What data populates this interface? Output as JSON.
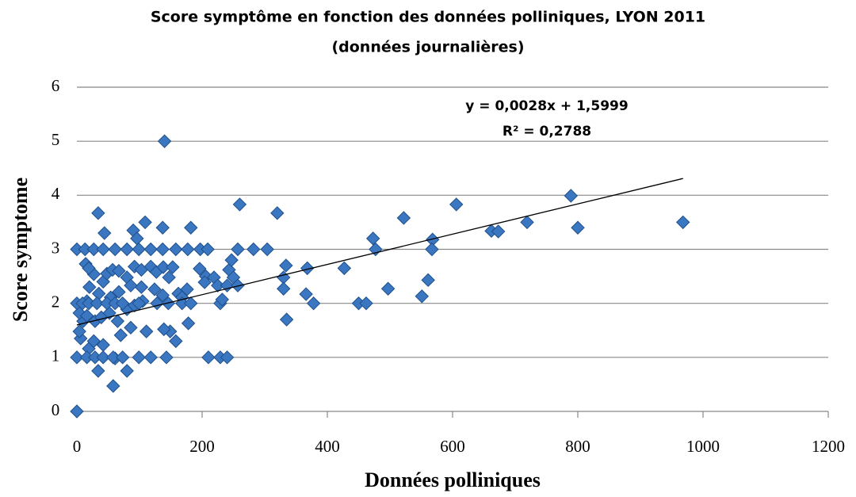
{
  "chart_data": {
    "type": "scatter",
    "title": [
      "Score symptôme en fonction des données polliniques, LYON 2011",
      "(données journalières)"
    ],
    "x_label": "Données polliniques",
    "y_label": "Score symptome",
    "xlim": [
      0,
      1200
    ],
    "xticks": [
      0,
      200,
      400,
      600,
      800,
      1000,
      1200
    ],
    "ylim": [
      0,
      6
    ],
    "yticks": [
      0,
      1,
      2,
      3,
      4,
      5,
      6
    ],
    "grid": true,
    "color": "#3b77c0",
    "x": [
      0,
      140,
      260,
      320,
      34,
      109,
      137,
      182,
      44,
      90,
      96,
      0,
      13,
      27,
      42,
      61,
      80,
      99,
      118,
      137,
      158,
      177,
      197,
      209,
      257,
      282,
      304,
      473,
      477,
      522,
      606,
      568,
      567,
      662,
      673,
      719,
      789,
      800,
      968,
      334,
      330,
      330,
      335,
      368,
      366,
      378,
      427,
      450,
      462,
      497,
      551,
      561,
      206,
      219,
      225,
      229,
      232,
      240,
      243,
      247,
      250,
      257,
      196,
      210,
      229,
      240,
      204,
      20,
      27,
      14,
      19,
      42,
      48,
      57,
      67,
      80,
      92,
      103,
      118,
      127,
      138,
      147,
      153,
      162,
      168,
      176,
      178,
      158,
      149,
      139,
      111,
      86,
      70,
      61,
      58,
      80,
      34,
      19,
      27,
      42,
      6,
      4,
      10,
      4,
      16,
      29,
      39,
      52,
      65,
      80,
      92,
      105,
      124,
      137,
      103,
      86,
      67,
      54,
      35,
      16,
      0,
      9,
      19,
      32,
      48,
      61,
      73,
      99,
      128,
      146,
      168,
      182,
      0,
      16,
      29,
      42,
      58,
      73,
      99,
      118,
      143
    ],
    "values": [
      0,
      5.0,
      3.83,
      3.67,
      3.67,
      3.5,
      3.4,
      3.4,
      3.3,
      3.35,
      3.2,
      3,
      3,
      3,
      3,
      3,
      3,
      3,
      3,
      3,
      3,
      3,
      3,
      3,
      3,
      3,
      3,
      3.2,
      3.0,
      3.58,
      3.83,
      3.18,
      3.0,
      3.34,
      3.33,
      3.5,
      3.99,
      3.4,
      3.5,
      2.7,
      2.48,
      2.27,
      1.7,
      2.65,
      2.17,
      2.0,
      2.65,
      2.0,
      2.0,
      2.27,
      2.13,
      2.43,
      2.5,
      2.48,
      2.33,
      2.0,
      2.07,
      2.33,
      2.62,
      2.8,
      2.48,
      2.33,
      2.64,
      1.0,
      1.0,
      1.0,
      2.39,
      2.3,
      2.54,
      2.73,
      2.65,
      2.4,
      2.55,
      2.62,
      2.6,
      2.48,
      2.68,
      2.62,
      2.68,
      2.58,
      2.67,
      2.48,
      2.67,
      2.18,
      2.11,
      2.26,
      1.63,
      1.3,
      1.48,
      1.52,
      1.48,
      1.55,
      1.41,
      0.98,
      0.47,
      0.75,
      0.75,
      1.16,
      1.3,
      1.23,
      1.35,
      1.48,
      1.67,
      1.82,
      1.77,
      1.67,
      1.74,
      1.82,
      1.67,
      1.89,
      1.96,
      2.04,
      2.26,
      2.15,
      2.3,
      2.33,
      2.21,
      2.11,
      2.18,
      2.04,
      2,
      2,
      2,
      2,
      2,
      2,
      2,
      2,
      2,
      2,
      2,
      2,
      1,
      1,
      1,
      1,
      1,
      1,
      1,
      1,
      1
    ],
    "trendline": {
      "label": "y = 0,0028x + 1,5999",
      "slope": 0.0028,
      "intercept": 1.5999,
      "xlim": [
        0,
        968
      ]
    },
    "annotations": [
      "R² = 0,2788"
    ]
  }
}
